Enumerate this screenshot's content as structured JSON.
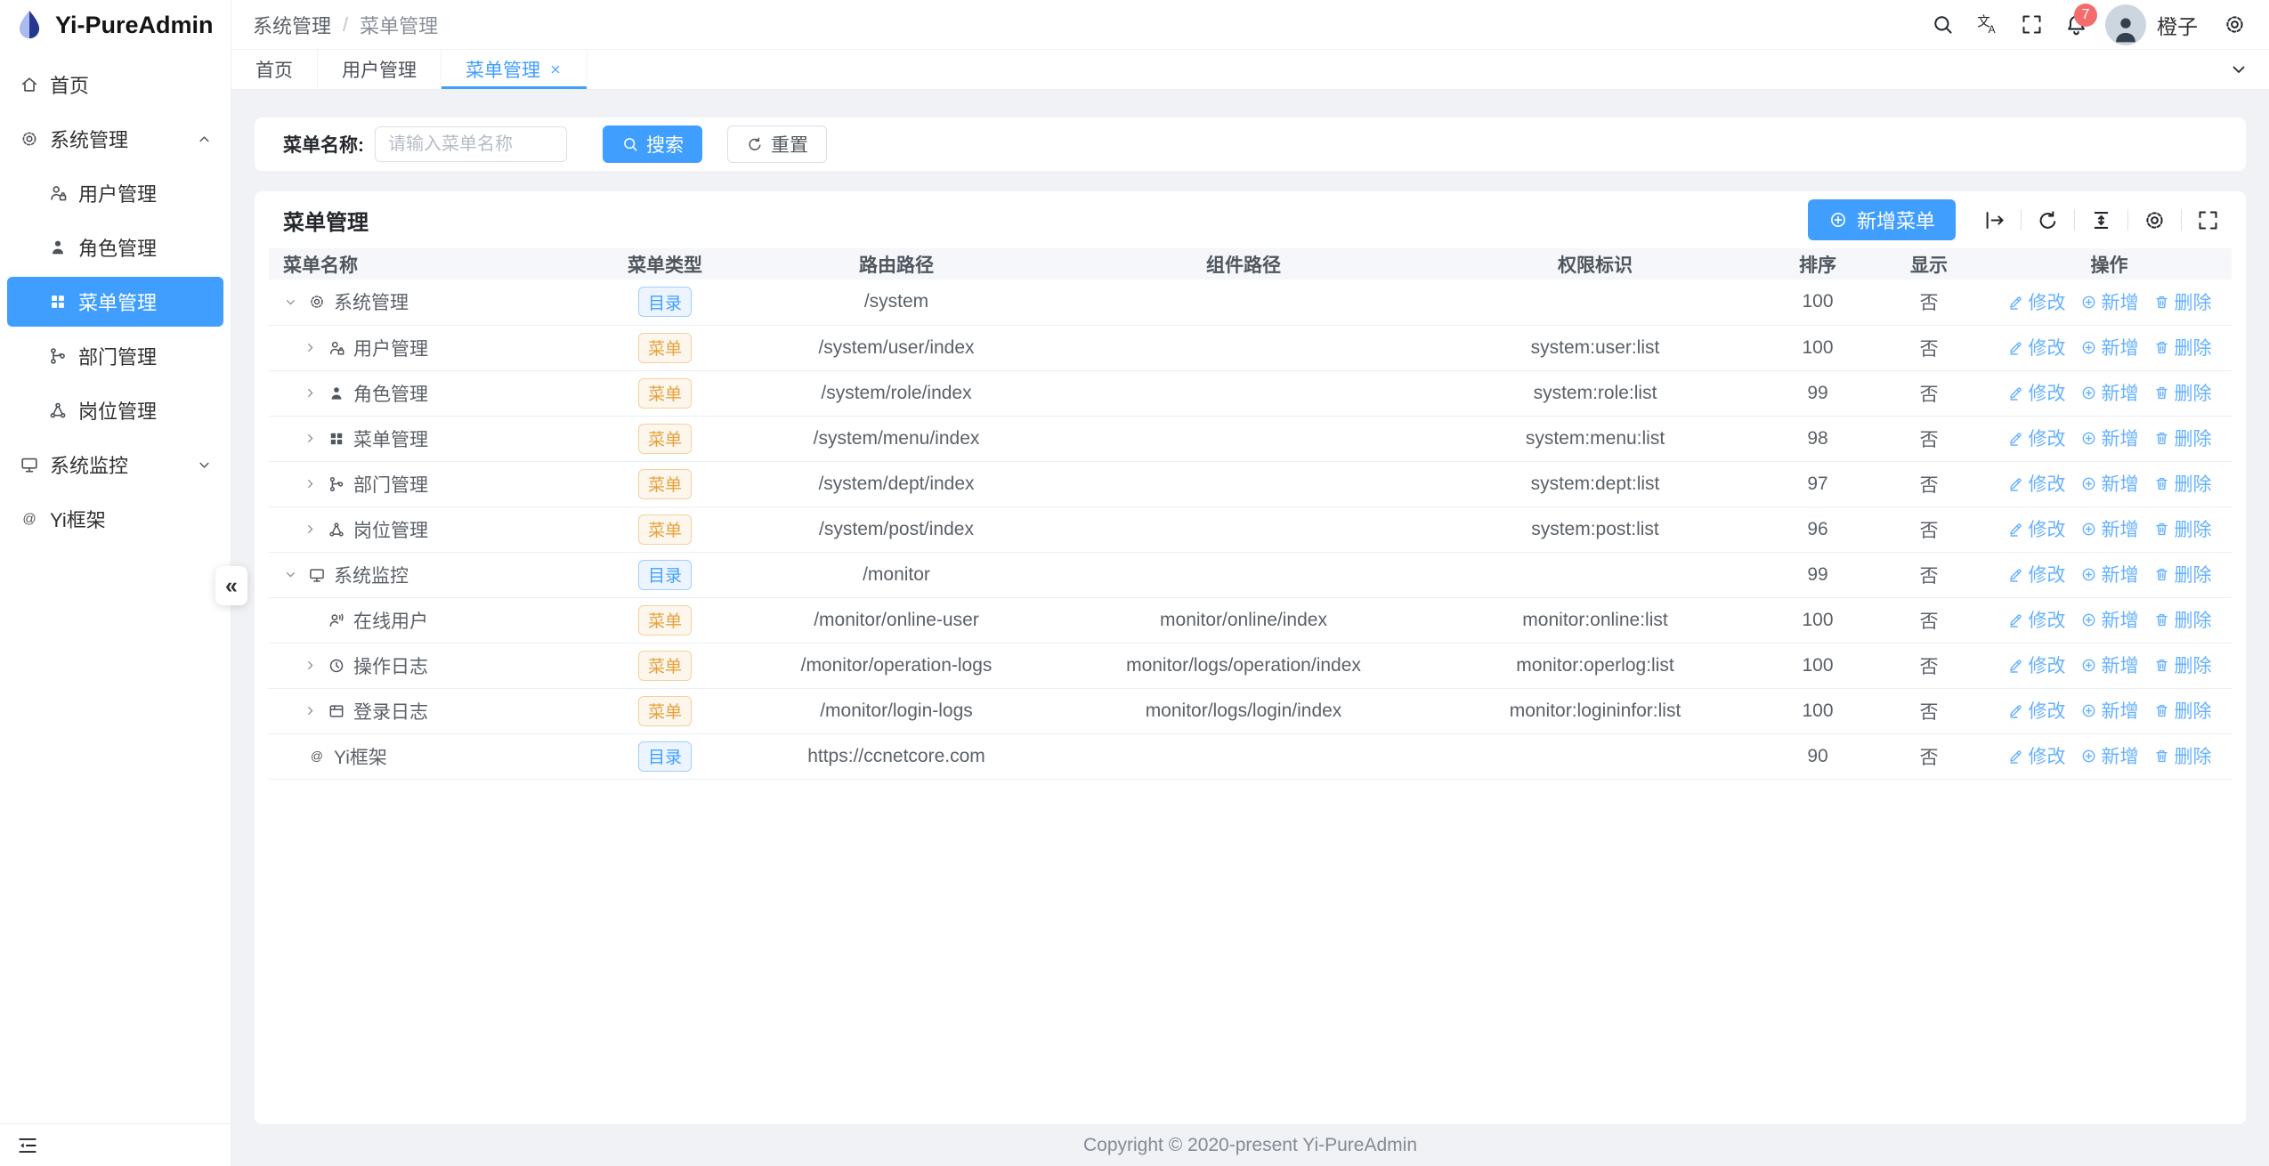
{
  "colors": {
    "primary": "#409eff",
    "warning_tag": "#e6a23c",
    "notification_badge": "#f56c6c",
    "page_bg": "#f0f2f5",
    "active_menu_bg": "#409eff"
  },
  "sidebar": {
    "logo_title": "Yi-PureAdmin",
    "collapse_glyph": "«",
    "items": [
      {
        "key": "home",
        "label": "首页",
        "icon": "home",
        "level": 0
      },
      {
        "key": "system-mgmt",
        "label": "系统管理",
        "icon": "gear",
        "level": 0,
        "arrow": "up"
      },
      {
        "key": "user-mgmt",
        "label": "用户管理",
        "icon": "user-lock",
        "level": 1
      },
      {
        "key": "role-mgmt",
        "label": "角色管理",
        "icon": "user",
        "level": 1
      },
      {
        "key": "menu-mgmt",
        "label": "菜单管理",
        "icon": "grid",
        "level": 1,
        "active": true
      },
      {
        "key": "dept-mgmt",
        "label": "部门管理",
        "icon": "branch",
        "level": 1
      },
      {
        "key": "post-mgmt",
        "label": "岗位管理",
        "icon": "share",
        "level": 1
      },
      {
        "key": "monitor",
        "label": "系统监控",
        "icon": "monitor",
        "level": 0,
        "arrow": "down"
      },
      {
        "key": "yi-framework",
        "label": "Yi框架",
        "icon": "at",
        "level": 0
      }
    ]
  },
  "header": {
    "breadcrumb": [
      "系统管理",
      "菜单管理"
    ],
    "breadcrumb_separator": "/",
    "notification_count": "7",
    "user_name": "橙子"
  },
  "tabs": {
    "items": [
      {
        "key": "home",
        "label": "首页"
      },
      {
        "key": "user-mgmt",
        "label": "用户管理"
      },
      {
        "key": "menu-mgmt",
        "label": "菜单管理",
        "active": true,
        "closable": true
      }
    ]
  },
  "search": {
    "label": "菜单名称:",
    "placeholder": "请输入菜单名称",
    "search_label": "搜索",
    "reset_label": "重置"
  },
  "table": {
    "title": "菜单管理",
    "add_label": "新增菜单",
    "columns": [
      "菜单名称",
      "菜单类型",
      "路由路径",
      "组件路径",
      "权限标识",
      "排序",
      "显示",
      "操作"
    ],
    "type_labels": {
      "dir": "目录",
      "menu": "菜单"
    },
    "actions": {
      "edit": "修改",
      "add": "新增",
      "delete": "删除"
    },
    "rows": [
      {
        "key": "system-mgmt",
        "name": "系统管理",
        "icon": "gear",
        "level": 0,
        "expand": "down",
        "type": "dir",
        "route": "/system",
        "component": "",
        "permission": "",
        "sort": "100",
        "visible": "否"
      },
      {
        "key": "user-mgmt",
        "name": "用户管理",
        "icon": "user-lock",
        "level": 1,
        "expand": "right",
        "type": "menu",
        "route": "/system/user/index",
        "component": "",
        "permission": "system:user:list",
        "sort": "100",
        "visible": "否"
      },
      {
        "key": "role-mgmt",
        "name": "角色管理",
        "icon": "user",
        "level": 1,
        "expand": "right",
        "type": "menu",
        "route": "/system/role/index",
        "component": "",
        "permission": "system:role:list",
        "sort": "99",
        "visible": "否"
      },
      {
        "key": "menu-mgmt",
        "name": "菜单管理",
        "icon": "grid",
        "level": 1,
        "expand": "right",
        "type": "menu",
        "route": "/system/menu/index",
        "component": "",
        "permission": "system:menu:list",
        "sort": "98",
        "visible": "否"
      },
      {
        "key": "dept-mgmt",
        "name": "部门管理",
        "icon": "branch",
        "level": 1,
        "expand": "right",
        "type": "menu",
        "route": "/system/dept/index",
        "component": "",
        "permission": "system:dept:list",
        "sort": "97",
        "visible": "否"
      },
      {
        "key": "post-mgmt",
        "name": "岗位管理",
        "icon": "share",
        "level": 1,
        "expand": "right",
        "type": "menu",
        "route": "/system/post/index",
        "component": "",
        "permission": "system:post:list",
        "sort": "96",
        "visible": "否"
      },
      {
        "key": "monitor",
        "name": "系统监控",
        "icon": "monitor",
        "level": 0,
        "expand": "down",
        "type": "dir",
        "route": "/monitor",
        "component": "",
        "permission": "",
        "sort": "99",
        "visible": "否"
      },
      {
        "key": "online-user",
        "name": "在线用户",
        "icon": "user-signal",
        "level": 1,
        "expand": "none",
        "type": "menu",
        "route": "/monitor/online-user",
        "component": "monitor/online/index",
        "permission": "monitor:online:list",
        "sort": "100",
        "visible": "否"
      },
      {
        "key": "operation-logs",
        "name": "操作日志",
        "icon": "clock",
        "level": 1,
        "expand": "right",
        "type": "menu",
        "route": "/monitor/operation-logs",
        "component": "monitor/logs/operation/index",
        "permission": "monitor:operlog:list",
        "sort": "100",
        "visible": "否"
      },
      {
        "key": "login-logs",
        "name": "登录日志",
        "icon": "window",
        "level": 1,
        "expand": "right",
        "type": "menu",
        "route": "/monitor/login-logs",
        "component": "monitor/logs/login/index",
        "permission": "monitor:logininfor:list",
        "sort": "100",
        "visible": "否"
      },
      {
        "key": "yi-framework",
        "name": "Yi框架",
        "icon": "at",
        "level": 0,
        "expand": "none",
        "type": "dir",
        "route": "https://ccnetcore.com",
        "component": "",
        "permission": "",
        "sort": "90",
        "visible": "否"
      }
    ]
  },
  "footer": {
    "copyright": "Copyright © 2020-present Yi-PureAdmin"
  }
}
